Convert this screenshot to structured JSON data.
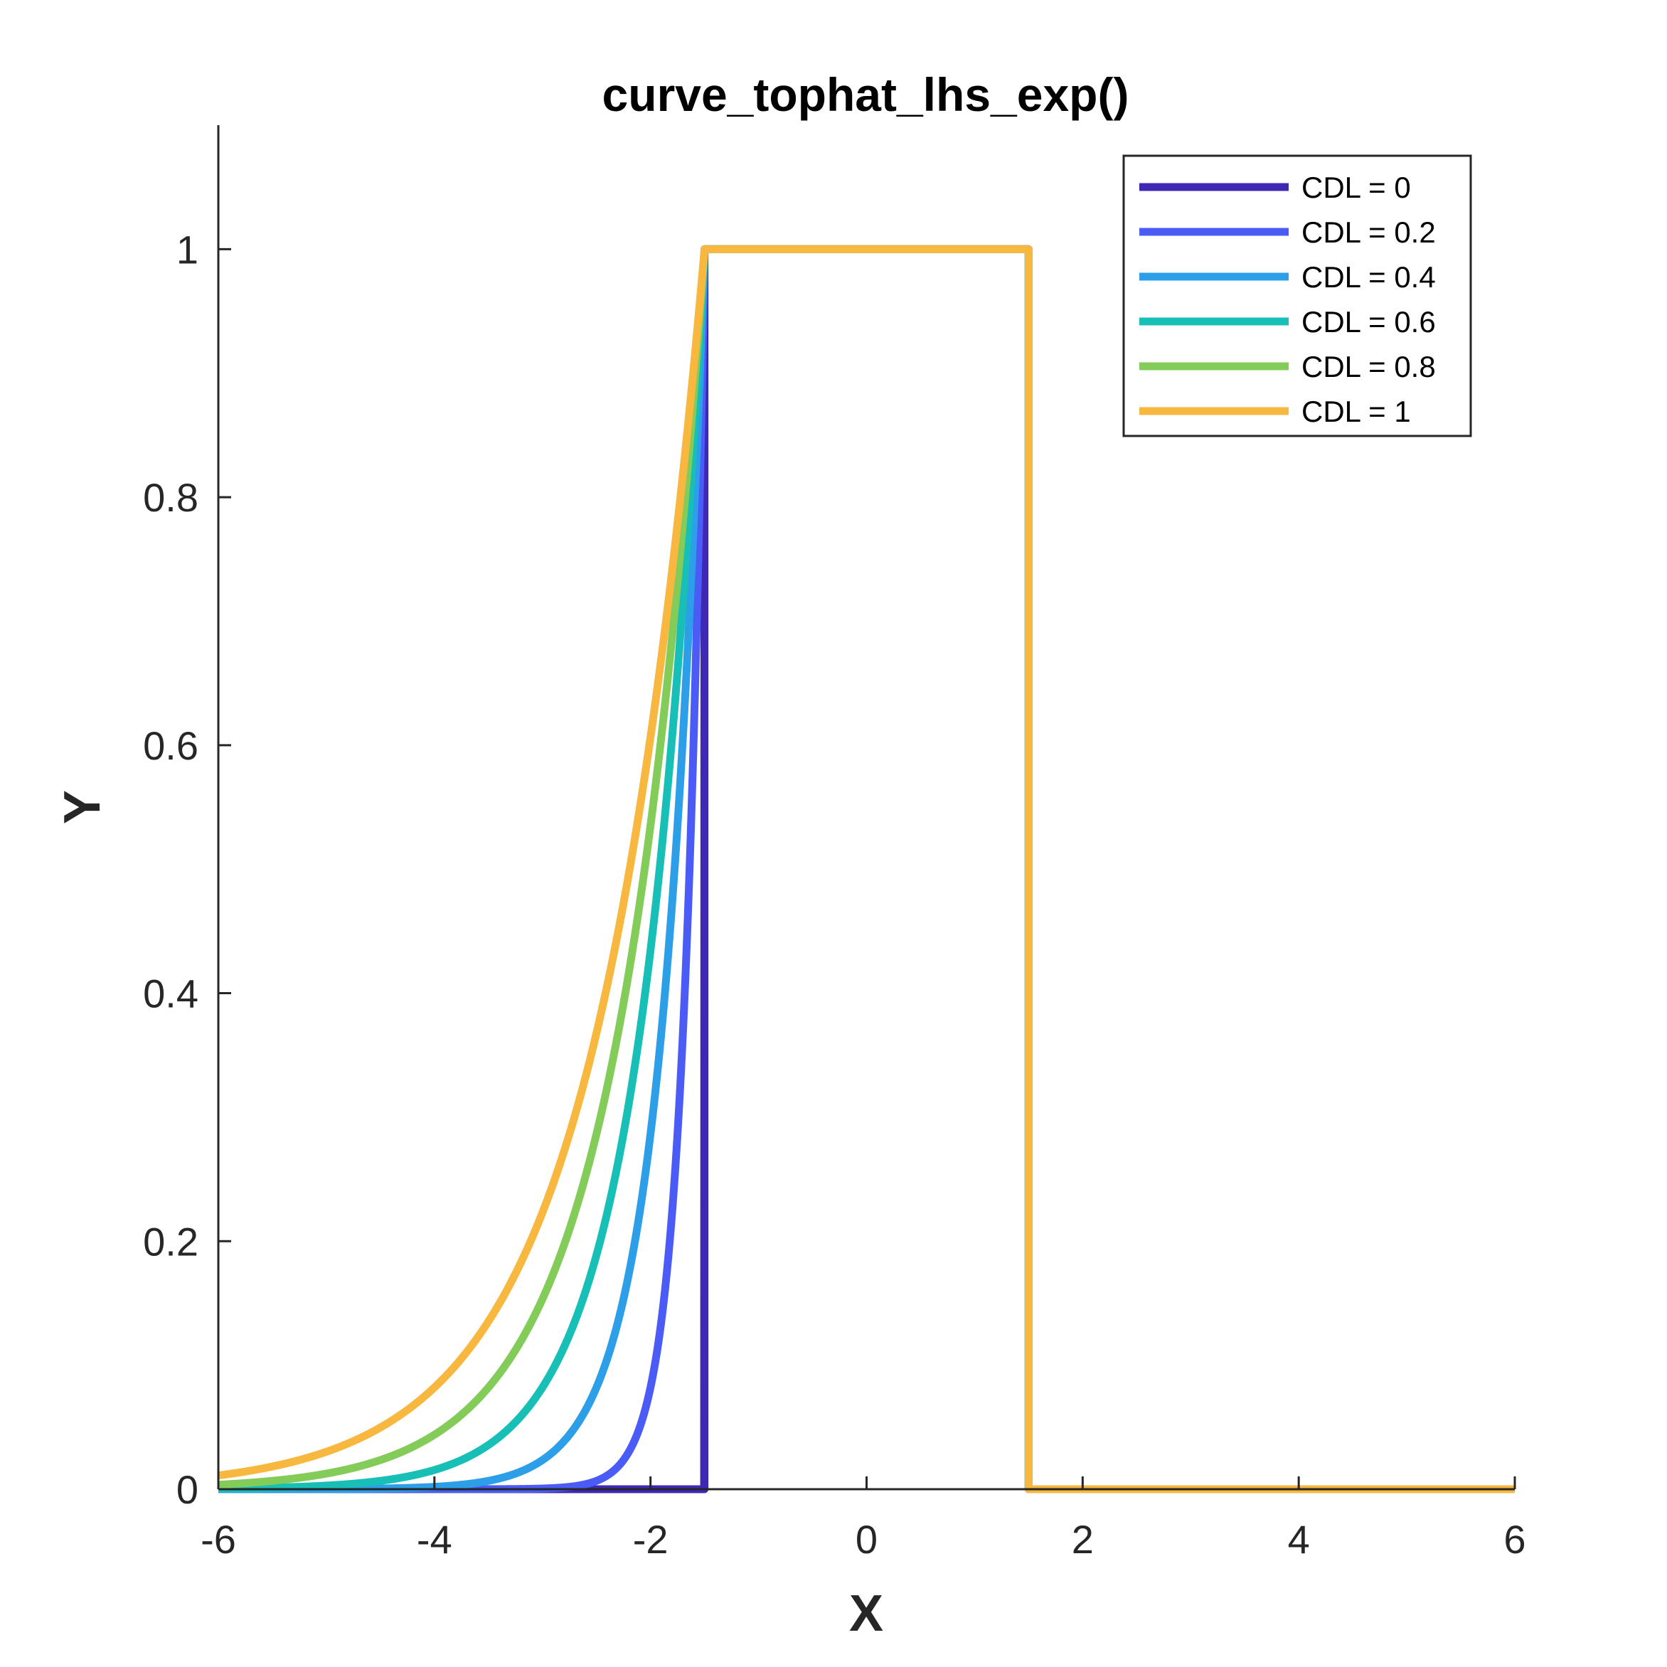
{
  "chart_data": {
    "type": "line",
    "title": "curve_tophat_lhs_exp()",
    "xlabel": "X",
    "ylabel": "Y",
    "xlim": [
      -6,
      6
    ],
    "ylim": [
      0,
      1.1
    ],
    "xticks": [
      "-6",
      "-4",
      "-2",
      "0",
      "2",
      "4",
      "6"
    ],
    "yticks": [
      "0",
      "0.2",
      "0.4",
      "0.6",
      "0.8",
      "1"
    ],
    "grid": false,
    "legend_position": "top-right",
    "tophat": {
      "left_edge": -1.5,
      "right_edge": 1.5,
      "height": 1
    },
    "series": [
      {
        "name": "CDL = 0",
        "cdl": 0,
        "color": "#3F29B4"
      },
      {
        "name": "CDL = 0.2",
        "cdl": 0.2,
        "color": "#4A5CF5"
      },
      {
        "name": "CDL = 0.4",
        "cdl": 0.4,
        "color": "#2C9FE8"
      },
      {
        "name": "CDL = 0.6",
        "cdl": 0.6,
        "color": "#18BFB7"
      },
      {
        "name": "CDL = 0.8",
        "cdl": 0.8,
        "color": "#84CC5A"
      },
      {
        "name": "CDL = 1",
        "cdl": 1,
        "color": "#F8B73E"
      }
    ]
  }
}
